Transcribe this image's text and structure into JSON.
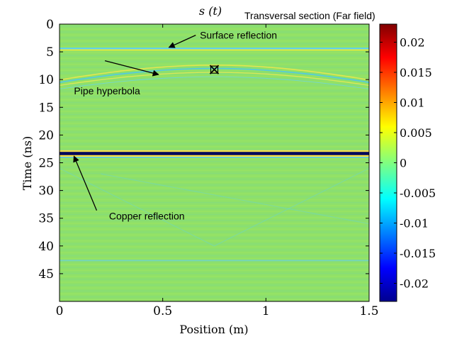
{
  "chart_data": {
    "type": "heatmap",
    "title": "s (t)",
    "subtitle": "Transversal section (Far field)",
    "xlabel": "Position (m)",
    "ylabel": "Time (ns)",
    "xlim": [
      0,
      1.5
    ],
    "ylim": [
      0,
      50
    ],
    "y_inverted": true,
    "xticks": [
      0,
      0.5,
      1,
      1.5
    ],
    "xtick_labels": [
      "0",
      "0.5",
      "1",
      "1.5"
    ],
    "yticks": [
      0,
      5,
      10,
      15,
      20,
      25,
      30,
      35,
      40,
      45
    ],
    "ytick_labels": [
      "0",
      "5",
      "10",
      "15",
      "20",
      "25",
      "30",
      "35",
      "40",
      "45"
    ],
    "colorbar": {
      "range": [
        -0.023,
        0.023
      ],
      "ticks": [
        0.02,
        0.015,
        0.01,
        0.005,
        0,
        -0.005,
        -0.01,
        -0.015,
        -0.02
      ],
      "tick_labels": [
        "0.02",
        "0.015",
        "0.01",
        "0.005",
        "0",
        "-0.005",
        "-0.01",
        "-0.015",
        "-0.02"
      ],
      "colormap": "jet"
    },
    "features": {
      "surface_reflection_time": 4.5,
      "copper_reflection_time": 23.5,
      "pipe_apex": {
        "x": 0.75,
        "t": 8.0
      },
      "pipe_marker": {
        "x": 0.75,
        "t": 8.2
      }
    },
    "annotations": [
      {
        "id": "surface",
        "text": "Surface reflection",
        "text_at": [
          0.68,
          2.0
        ],
        "arrow_from": [
          0.66,
          2.0
        ],
        "arrow_to": [
          0.53,
          4.2
        ]
      },
      {
        "id": "pipe",
        "text": "Pipe hyperbola",
        "text_at": [
          0.07,
          12.0
        ],
        "arrow_from": [
          0.22,
          6.6
        ],
        "arrow_to": [
          0.48,
          9.1
        ]
      },
      {
        "id": "copper",
        "text": "Copper reflection",
        "text_at": [
          0.24,
          34.6
        ],
        "arrow_from": [
          0.18,
          33.6
        ],
        "arrow_to": [
          0.07,
          23.8
        ]
      }
    ],
    "colors": {
      "background_field": "#8ee06a",
      "surface_band": "#6fd8f0",
      "copper_dark": "#00005a",
      "copper_light": "#ffd840"
    }
  }
}
